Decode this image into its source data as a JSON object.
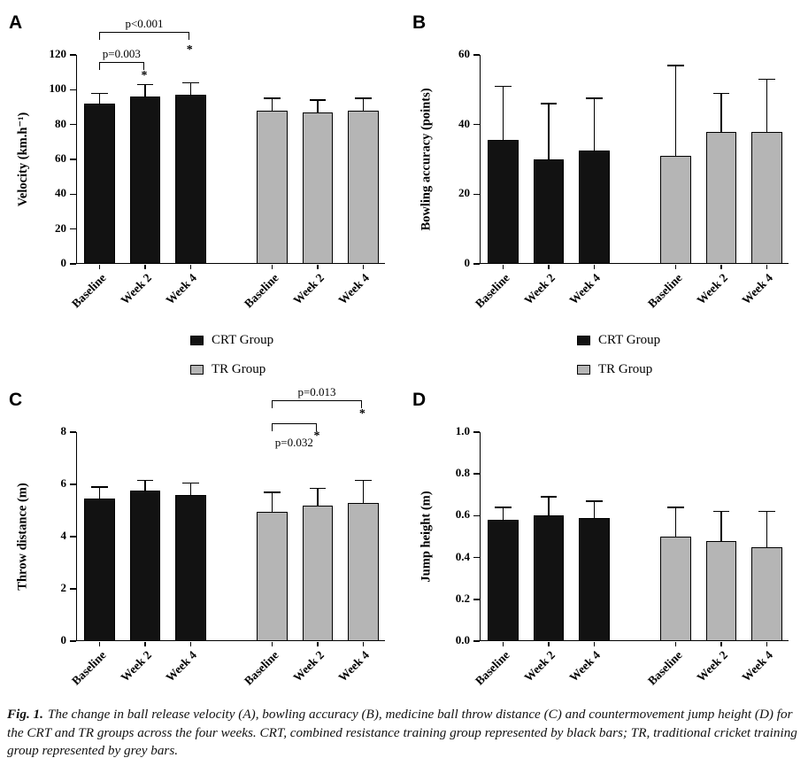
{
  "colors": {
    "black": "#121212",
    "grey": "#b5b5b5",
    "axis": "#000000"
  },
  "legend": {
    "items": [
      {
        "label": "CRT Group",
        "color_key": "black"
      },
      {
        "label": "TR Group",
        "color_key": "grey"
      }
    ]
  },
  "caption": {
    "label": "Fig. 1.",
    "text": "The change in ball release velocity (A), bowling accuracy (B), medicine ball throw distance (C) and countermovement jump height (D) for the CRT and TR groups across the four weeks. CRT, combined resistance training group represented by black bars; TR, traditional cricket training group represented by grey bars."
  },
  "chart_data": [
    {
      "id": "A",
      "type": "bar",
      "panel_label": "A",
      "title": "",
      "xlabel": "",
      "ylabel": "Velocity (km.h⁻¹)",
      "ymax": 120,
      "ylim": [
        0,
        120
      ],
      "yticks": [
        0,
        20,
        40,
        60,
        80,
        100,
        120
      ],
      "ytick_labels": [
        "0",
        "20",
        "40",
        "60",
        "80",
        "100",
        "120"
      ],
      "categories": [
        "Baseline",
        "Week 2",
        "Week 4",
        "Baseline",
        "Week 2",
        "Week 4"
      ],
      "groups": [
        "CRT",
        "CRT",
        "CRT",
        "TR",
        "TR",
        "TR"
      ],
      "values": [
        92,
        96,
        97,
        88,
        87,
        88
      ],
      "errors": [
        6,
        7,
        7,
        7,
        7,
        7
      ],
      "annotations": [
        {
          "kind": "bracket",
          "from": 0,
          "to": 2,
          "label": "p<0.001",
          "line_y": 30,
          "label_y": 13
        },
        {
          "kind": "bracket",
          "from": 0,
          "to": 1,
          "label": "p=0.003",
          "line_y": 64,
          "label_y": 47
        },
        {
          "kind": "star",
          "bar": 2,
          "y": 43,
          "symbol": "*"
        },
        {
          "kind": "star",
          "bar": 1,
          "y": 72,
          "symbol": "*"
        }
      ]
    },
    {
      "id": "B",
      "type": "bar",
      "panel_label": "B",
      "title": "",
      "xlabel": "",
      "ylabel": "Bowling accuracy (points)",
      "ymax": 60,
      "ylim": [
        0,
        60
      ],
      "yticks": [
        0,
        20,
        40,
        60
      ],
      "ytick_labels": [
        "0",
        "20",
        "40",
        "60"
      ],
      "categories": [
        "Baseline",
        "Week 2",
        "Week 4",
        "Baseline",
        "Week 2",
        "Week 4"
      ],
      "groups": [
        "CRT",
        "CRT",
        "CRT",
        "TR",
        "TR",
        "TR"
      ],
      "values": [
        35.5,
        30,
        32.5,
        31,
        38,
        38
      ],
      "errors": [
        15.5,
        16,
        15,
        26,
        11,
        15
      ],
      "annotations": []
    },
    {
      "id": "C",
      "type": "bar",
      "panel_label": "C",
      "title": "",
      "xlabel": "",
      "ylabel": "Throw distance (m)",
      "ymax": 8,
      "ylim": [
        0,
        8
      ],
      "yticks": [
        0,
        2,
        4,
        6,
        8
      ],
      "ytick_labels": [
        "0",
        "2",
        "4",
        "6",
        "8"
      ],
      "categories": [
        "Baseline",
        "Week 2",
        "Week 4",
        "Baseline",
        "Week 2",
        "Week 4"
      ],
      "groups": [
        "CRT",
        "CRT",
        "CRT",
        "TR",
        "TR",
        "TR"
      ],
      "values": [
        5.45,
        5.75,
        5.6,
        4.95,
        5.2,
        5.3
      ],
      "errors": [
        0.45,
        0.4,
        0.45,
        0.75,
        0.65,
        0.85
      ],
      "annotations": [
        {
          "kind": "bracket",
          "from": 3,
          "to": 5,
          "label": "p=0.013",
          "line_y": 20,
          "label_y": 3
        },
        {
          "kind": "star",
          "bar": 5,
          "y": 28,
          "symbol": "*"
        },
        {
          "kind": "bracket",
          "from": 3,
          "to": 4,
          "label": "p=0.032",
          "line_y": 46,
          "label_y": 60
        },
        {
          "kind": "star",
          "bar": 4,
          "y": 53,
          "symbol": "*"
        }
      ]
    },
    {
      "id": "D",
      "type": "bar",
      "panel_label": "D",
      "title": "",
      "xlabel": "",
      "ylabel": "Jump height (m)",
      "ymax": 1.0,
      "ylim": [
        0,
        1.0
      ],
      "yticks": [
        0,
        0.2,
        0.4,
        0.6,
        0.8,
        1.0
      ],
      "ytick_labels": [
        "0.0",
        "0.2",
        "0.4",
        "0.6",
        "0.8",
        "1.0"
      ],
      "categories": [
        "Baseline",
        "Week 2",
        "Week 4",
        "Baseline",
        "Week 2",
        "Week 4"
      ],
      "groups": [
        "CRT",
        "CRT",
        "CRT",
        "TR",
        "TR",
        "TR"
      ],
      "values": [
        0.58,
        0.6,
        0.59,
        0.5,
        0.48,
        0.45
      ],
      "errors": [
        0.06,
        0.09,
        0.08,
        0.14,
        0.14,
        0.17
      ],
      "annotations": []
    }
  ]
}
